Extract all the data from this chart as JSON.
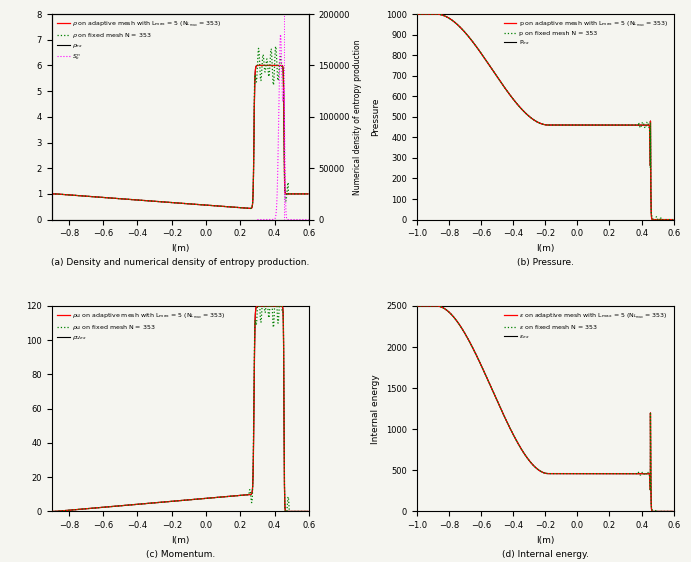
{
  "subplot_captions": [
    "(a) Density and numerical density of entropy production.",
    "(b) Pressure.",
    "(c) Momentum.",
    "(d) Internal energy."
  ],
  "x_label": "l(m)",
  "background": "#f5f5f0",
  "plot_a": {
    "xlim": [
      -0.9,
      0.6
    ],
    "ylim_left": [
      0,
      8
    ],
    "ylim_right": [
      0,
      200000
    ],
    "yticks_left": [
      0,
      1,
      2,
      3,
      4,
      5,
      6,
      7,
      8
    ],
    "yticks_right": [
      0,
      50000,
      100000,
      150000,
      200000
    ],
    "ylabel_right": "Numerical density of entropy production",
    "xticks": [
      -0.8,
      -0.6,
      -0.4,
      -0.2,
      0.0,
      0.2,
      0.4,
      0.6
    ]
  },
  "plot_b": {
    "xlim": [
      -1.0,
      0.6
    ],
    "ylim": [
      0,
      1000
    ],
    "yticks": [
      0,
      100,
      200,
      300,
      400,
      500,
      600,
      700,
      800,
      900,
      1000
    ],
    "ylabel": "Pressure",
    "xticks": [
      -1.0,
      -0.8,
      -0.6,
      -0.4,
      -0.2,
      0.0,
      0.2,
      0.4,
      0.6
    ]
  },
  "plot_c": {
    "xlim": [
      -0.9,
      0.6
    ],
    "ylim": [
      0,
      120
    ],
    "yticks": [
      0,
      20,
      40,
      60,
      80,
      100,
      120
    ],
    "xticks": [
      -0.8,
      -0.6,
      -0.4,
      -0.2,
      0.0,
      0.2,
      0.4,
      0.6
    ]
  },
  "plot_d": {
    "xlim": [
      -1.0,
      0.6
    ],
    "ylim": [
      0,
      2500
    ],
    "yticks": [
      0,
      500,
      1000,
      1500,
      2000,
      2500
    ],
    "ylabel": "Internal energy",
    "xticks": [
      -1.0,
      -0.8,
      -0.6,
      -0.4,
      -0.2,
      0.0,
      0.2,
      0.4,
      0.6
    ]
  }
}
